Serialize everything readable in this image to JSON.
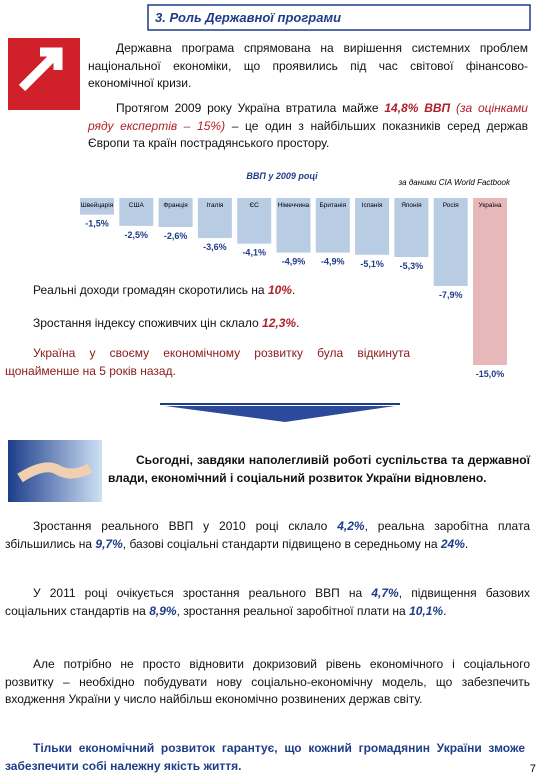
{
  "header": {
    "title": "3. Роль Державної програми"
  },
  "paragraphs": [
    [
      "Державна програма спрямована на вирішення системних проблем національної економіки, що проявились під час світової фінансово-економічної кризи."
    ],
    [
      "Протягом 2009 року Україна втратила майже ",
      "14,8% ВВП",
      " ",
      "(за оцінками ряду експертів – 15%)",
      " – це один з найбільших показників серед держав Європи та країн пострадянського простору."
    ],
    [
      "Реальні доходи громадян скоротились на ",
      "10%",
      "."
    ],
    [
      "Зростання індексу споживчих цін склало ",
      "12,3%",
      "."
    ],
    [
      "Україна у своєму економічному розвитку була відкинута щонайменше на 5 років назад."
    ],
    [
      "Сьогодні, завдяки наполегливій роботі суспільства та державної влади, економічний і соціальний розвиток України відновлено."
    ],
    [
      "Зростання реального ВВП у 2010 році склало ",
      "4,2%",
      ", реальна заробітна плата збільшились на ",
      "9,7%",
      ", базові соціальні стандарти підвищено в середньому на ",
      "24%",
      "."
    ],
    [
      "У 2011 році очікується зростання реального ВВП на ",
      "4,7%",
      ", підвищення базових соціальних стандартів на ",
      "8,9%",
      ", зростання реальної заробітної плати на ",
      "10,1%",
      "."
    ],
    [
      "Але потрібно не просто відновити докризовий рівень економічного і соціального розвитку – необхідно побудувати нову соціально-економічну модель, що забезпечить входження України у число найбільш економічно розвинених держав світу."
    ],
    [
      "Тільки економічний розвиток гарантує, що кожний громадянин України зможе забезпечити собі належну якість життя."
    ]
  ],
  "page_number": "7",
  "chart_data": {
    "type": "bar",
    "title": "ВВП у 2009 році",
    "source": "за даними CIA World Factbook",
    "categories": [
      "Швейцарія",
      "США",
      "Франція",
      "Італія",
      "ЄС",
      "Німеччина",
      "Британія",
      "Іспанія",
      "Японія",
      "Росія",
      "Україна"
    ],
    "values": [
      -1.5,
      -2.5,
      -2.6,
      -3.6,
      -4.1,
      -4.9,
      -4.9,
      -5.1,
      -5.3,
      -7.9,
      -15.0
    ],
    "value_labels": [
      "-1,5%",
      "-2,5%",
      "-2,6%",
      "-3,6%",
      "-4,1%",
      "-4,9%",
      "-4,9%",
      "-5,1%",
      "-5,3%",
      "-7,9%",
      "-15,0%"
    ],
    "colors": [
      "#b8cce4",
      "#b8cce4",
      "#b8cce4",
      "#b8cce4",
      "#b8cce4",
      "#b8cce4",
      "#b8cce4",
      "#b8cce4",
      "#b8cce4",
      "#b8cce4",
      "#e6b8ba"
    ],
    "ylim": [
      -15,
      0
    ]
  }
}
